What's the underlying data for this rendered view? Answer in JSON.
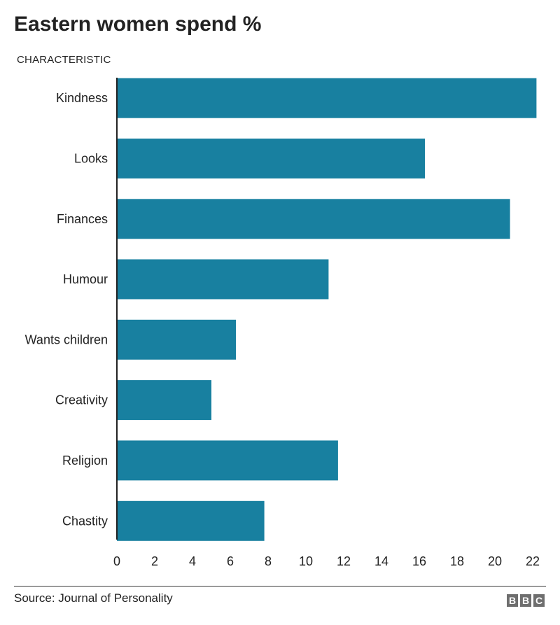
{
  "chart_data": {
    "type": "bar",
    "orientation": "horizontal",
    "title": "Eastern women spend %",
    "category_axis_label": "CHARACTERISTIC",
    "categories": [
      "Kindness",
      "Looks",
      "Finances",
      "Humour",
      "Wants children",
      "Creativity",
      "Religion",
      "Chastity"
    ],
    "values": [
      22.2,
      16.3,
      20.8,
      11.2,
      6.3,
      5.0,
      11.7,
      7.8
    ],
    "xlim": [
      0,
      22
    ],
    "xticks": [
      0,
      2,
      4,
      6,
      8,
      10,
      12,
      14,
      16,
      18,
      20,
      22
    ],
    "grid": false,
    "bar_color": "#1880a0"
  },
  "footer": {
    "source": "Source: Journal of Personality",
    "logo_letters": [
      "B",
      "B",
      "C"
    ]
  }
}
